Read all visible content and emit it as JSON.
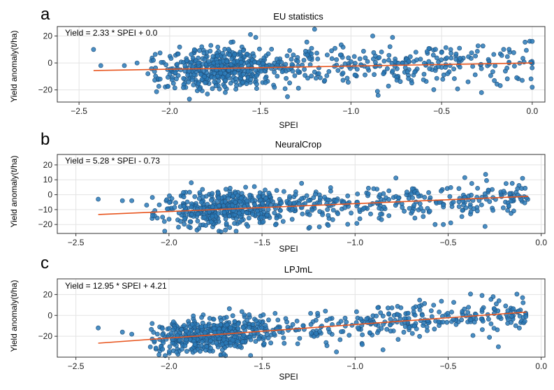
{
  "chart_data": [
    {
      "type": "scatter",
      "panel": "a",
      "title": "EU statistics",
      "xlabel": "SPEI",
      "ylabel": "Yield anomaly(t/ha)",
      "annotation": "Yield = 2.33 * SPEI + 0.0",
      "fit": {
        "slope": 2.33,
        "intercept": 0.0,
        "x_range": [
          -2.42,
          0.0
        ]
      },
      "xlim": [
        -2.62,
        0.07
      ],
      "ylim": [
        -29,
        27
      ],
      "xticks": [
        -2.5,
        -2.0,
        -1.5,
        -1.0,
        -0.5,
        0.0
      ],
      "xtick_labels": [
        "−2.5",
        "−2.0",
        "−1.5",
        "−1.0",
        "−0.5",
        "0.0"
      ],
      "yticks": [
        20,
        0,
        -20
      ],
      "ytick_labels": [
        "20",
        "0",
        "−20"
      ],
      "n_points": 720,
      "sample_points": [
        [
          -2.42,
          10
        ],
        [
          -2.38,
          -2
        ],
        [
          -2.25,
          -2
        ],
        [
          -2.18,
          0
        ],
        [
          -2.12,
          -8
        ],
        [
          -2.09,
          2
        ],
        [
          -0.88,
          20
        ],
        [
          -1.35,
          -25
        ],
        [
          -0.85,
          -24
        ],
        [
          0.0,
          16
        ],
        [
          0.0,
          -18
        ],
        [
          -0.28,
          -22
        ]
      ],
      "grid": true
    },
    {
      "type": "scatter",
      "panel": "b",
      "title": "NeuralCrop",
      "xlabel": "SPEI",
      "ylabel": "Yield anomaly(t/ha)",
      "annotation": "Yield = 5.28 * SPEI - 0.73",
      "fit": {
        "slope": 5.28,
        "intercept": -0.73,
        "x_range": [
          -2.38,
          -0.07
        ]
      },
      "xlim": [
        -2.6,
        0.02
      ],
      "ylim": [
        -26,
        27
      ],
      "xticks": [
        -2.5,
        -2.0,
        -1.5,
        -1.0,
        -0.5,
        0.0
      ],
      "xtick_labels": [
        "−2.5",
        "−2.0",
        "−1.5",
        "−1.0",
        "−0.5",
        "0.0"
      ],
      "yticks": [
        20,
        10,
        0,
        -10,
        -20
      ],
      "ytick_labels": [
        "20",
        "10",
        "0",
        "−10",
        "−20"
      ],
      "n_points": 720,
      "sample_points": [
        [
          -2.38,
          -3
        ],
        [
          -2.25,
          -4
        ],
        [
          -2.2,
          -4
        ],
        [
          -2.12,
          -7
        ],
        [
          -1.88,
          8
        ],
        [
          -0.1,
          11
        ],
        [
          -0.57,
          -20
        ],
        [
          -1.72,
          -25
        ]
      ],
      "grid": true
    },
    {
      "type": "scatter",
      "panel": "c",
      "title": "LPJmL",
      "xlabel": "SPEI",
      "ylabel": "Yield anomaly(t/ha)",
      "annotation": "Yield = 12.95 * SPEI + 4.21",
      "fit": {
        "slope": 12.95,
        "intercept": 4.21,
        "x_range": [
          -2.38,
          -0.08
        ]
      },
      "xlim": [
        -2.6,
        0.02
      ],
      "ylim": [
        -40,
        35
      ],
      "xticks": [
        -2.5,
        -2.0,
        -1.5,
        -1.0,
        -0.5,
        0.0
      ],
      "xtick_labels": [
        "−2.5",
        "−2.0",
        "−1.5",
        "−1.0",
        "−0.5",
        "0.0"
      ],
      "yticks": [
        20,
        0,
        -20
      ],
      "ytick_labels": [
        "20",
        "0",
        "−20"
      ],
      "n_points": 720,
      "sample_points": [
        [
          -2.38,
          -12
        ],
        [
          -2.25,
          -16
        ],
        [
          -2.2,
          -18
        ],
        [
          -2.05,
          -23
        ],
        [
          -0.85,
          -33
        ],
        [
          -0.1,
          17
        ],
        [
          -0.23,
          -30
        ],
        [
          -1.1,
          -35
        ]
      ],
      "grid": true
    }
  ],
  "colors": {
    "points": "#2a7ab8",
    "fit_line": "#e8551e",
    "frame": "#333333",
    "grid": "#e3e3e3"
  }
}
